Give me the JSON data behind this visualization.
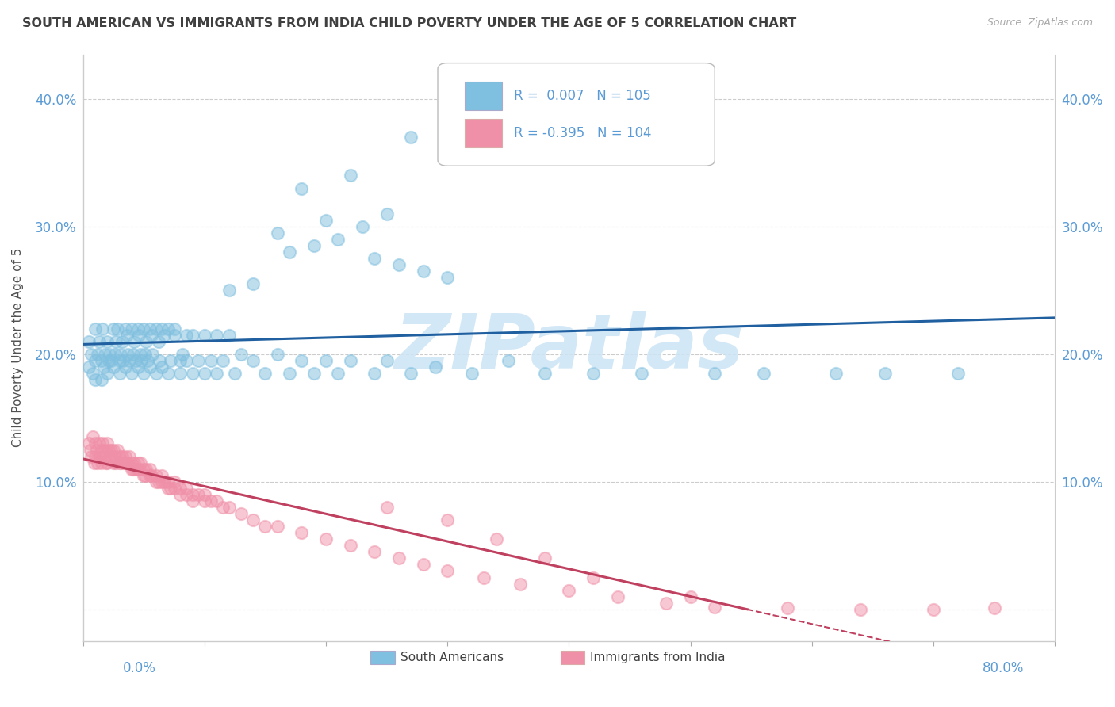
{
  "title": "SOUTH AMERICAN VS IMMIGRANTS FROM INDIA CHILD POVERTY UNDER THE AGE OF 5 CORRELATION CHART",
  "source": "Source: ZipAtlas.com",
  "ylabel": "Child Poverty Under the Age of 5",
  "yticks": [
    0.0,
    0.1,
    0.2,
    0.3,
    0.4
  ],
  "ytick_labels": [
    "",
    "10.0%",
    "20.0%",
    "30.0%",
    "40.0%"
  ],
  "xmin": 0.0,
  "xmax": 0.8,
  "ymin": -0.025,
  "ymax": 0.435,
  "south_american_R": 0.007,
  "south_american_N": 105,
  "india_R": -0.395,
  "india_N": 104,
  "blue_line_color": "#2060a0",
  "pink_line_color": "#c04060",
  "blue_dot_color": "#7fbfdf",
  "pink_dot_color": "#f090a8",
  "background_color": "#ffffff",
  "grid_color": "#cccccc",
  "title_color": "#404040",
  "axis_label_color": "#5b9bd5",
  "watermark_color": "#cce4f5",
  "legend_text_color": "#5b9bd5",
  "legend_pink_text_color": "#5b9bd5",
  "sa_x": [
    0.005,
    0.005,
    0.007,
    0.008,
    0.01,
    0.01,
    0.01,
    0.012,
    0.013,
    0.015,
    0.015,
    0.016,
    0.017,
    0.018,
    0.02,
    0.02,
    0.021,
    0.022,
    0.023,
    0.025,
    0.025,
    0.026,
    0.027,
    0.028,
    0.03,
    0.03,
    0.031,
    0.032,
    0.033,
    0.035,
    0.035,
    0.036,
    0.037,
    0.038,
    0.04,
    0.04,
    0.041,
    0.042,
    0.043,
    0.045,
    0.045,
    0.046,
    0.047,
    0.048,
    0.05,
    0.05,
    0.051,
    0.052,
    0.053,
    0.055,
    0.055,
    0.056,
    0.057,
    0.06,
    0.06,
    0.062,
    0.063,
    0.065,
    0.065,
    0.067,
    0.07,
    0.07,
    0.072,
    0.075,
    0.075,
    0.08,
    0.08,
    0.082,
    0.085,
    0.085,
    0.09,
    0.09,
    0.095,
    0.1,
    0.1,
    0.105,
    0.11,
    0.11,
    0.115,
    0.12,
    0.125,
    0.13,
    0.14,
    0.15,
    0.16,
    0.17,
    0.18,
    0.19,
    0.2,
    0.21,
    0.22,
    0.24,
    0.25,
    0.27,
    0.29,
    0.32,
    0.35,
    0.38,
    0.42,
    0.46,
    0.52,
    0.56,
    0.62,
    0.66,
    0.72
  ],
  "sa_y": [
    0.19,
    0.21,
    0.2,
    0.185,
    0.22,
    0.18,
    0.195,
    0.2,
    0.21,
    0.195,
    0.18,
    0.22,
    0.19,
    0.2,
    0.21,
    0.185,
    0.195,
    0.2,
    0.195,
    0.22,
    0.19,
    0.2,
    0.21,
    0.22,
    0.195,
    0.185,
    0.2,
    0.21,
    0.195,
    0.22,
    0.19,
    0.215,
    0.2,
    0.195,
    0.22,
    0.185,
    0.2,
    0.21,
    0.195,
    0.22,
    0.19,
    0.215,
    0.2,
    0.195,
    0.22,
    0.185,
    0.2,
    0.21,
    0.195,
    0.22,
    0.19,
    0.215,
    0.2,
    0.22,
    0.185,
    0.21,
    0.195,
    0.22,
    0.19,
    0.215,
    0.22,
    0.185,
    0.195,
    0.215,
    0.22,
    0.195,
    0.185,
    0.2,
    0.215,
    0.195,
    0.215,
    0.185,
    0.195,
    0.215,
    0.185,
    0.195,
    0.215,
    0.185,
    0.195,
    0.215,
    0.185,
    0.2,
    0.195,
    0.185,
    0.2,
    0.185,
    0.195,
    0.185,
    0.195,
    0.185,
    0.195,
    0.185,
    0.195,
    0.185,
    0.19,
    0.185,
    0.195,
    0.185,
    0.185,
    0.185,
    0.185,
    0.185,
    0.185,
    0.185,
    0.185
  ],
  "sa_y_outliers": [
    0.37,
    0.34,
    0.33,
    0.31,
    0.305,
    0.3,
    0.295,
    0.29,
    0.285,
    0.28,
    0.275,
    0.27,
    0.265,
    0.26,
    0.255,
    0.25
  ],
  "sa_x_outliers": [
    0.27,
    0.22,
    0.18,
    0.25,
    0.2,
    0.23,
    0.16,
    0.21,
    0.19,
    0.17,
    0.24,
    0.26,
    0.28,
    0.3,
    0.14,
    0.12
  ],
  "in_x": [
    0.005,
    0.006,
    0.007,
    0.008,
    0.009,
    0.01,
    0.01,
    0.011,
    0.012,
    0.013,
    0.014,
    0.015,
    0.015,
    0.016,
    0.017,
    0.018,
    0.019,
    0.02,
    0.02,
    0.021,
    0.022,
    0.023,
    0.025,
    0.025,
    0.026,
    0.027,
    0.028,
    0.03,
    0.03,
    0.031,
    0.032,
    0.033,
    0.035,
    0.035,
    0.036,
    0.037,
    0.038,
    0.04,
    0.04,
    0.041,
    0.042,
    0.043,
    0.045,
    0.045,
    0.046,
    0.047,
    0.05,
    0.05,
    0.051,
    0.052,
    0.055,
    0.055,
    0.056,
    0.06,
    0.06,
    0.062,
    0.065,
    0.065,
    0.067,
    0.07,
    0.07,
    0.072,
    0.075,
    0.075,
    0.08,
    0.08,
    0.085,
    0.085,
    0.09,
    0.09,
    0.095,
    0.1,
    0.1,
    0.105,
    0.11,
    0.115,
    0.12,
    0.13,
    0.14,
    0.15,
    0.16,
    0.18,
    0.2,
    0.22,
    0.24,
    0.26,
    0.28,
    0.3,
    0.33,
    0.36,
    0.4,
    0.44,
    0.48,
    0.52,
    0.58,
    0.64,
    0.7,
    0.75,
    0.34,
    0.25,
    0.3,
    0.38,
    0.42,
    0.5
  ],
  "in_y": [
    0.13,
    0.125,
    0.12,
    0.135,
    0.115,
    0.13,
    0.12,
    0.125,
    0.115,
    0.13,
    0.12,
    0.125,
    0.115,
    0.13,
    0.12,
    0.125,
    0.115,
    0.13,
    0.115,
    0.125,
    0.12,
    0.125,
    0.115,
    0.125,
    0.12,
    0.115,
    0.125,
    0.115,
    0.12,
    0.115,
    0.12,
    0.115,
    0.115,
    0.12,
    0.115,
    0.115,
    0.12,
    0.11,
    0.115,
    0.11,
    0.115,
    0.11,
    0.11,
    0.115,
    0.11,
    0.115,
    0.105,
    0.11,
    0.105,
    0.11,
    0.105,
    0.11,
    0.105,
    0.1,
    0.105,
    0.1,
    0.1,
    0.105,
    0.1,
    0.095,
    0.1,
    0.095,
    0.095,
    0.1,
    0.09,
    0.095,
    0.09,
    0.095,
    0.09,
    0.085,
    0.09,
    0.085,
    0.09,
    0.085,
    0.085,
    0.08,
    0.08,
    0.075,
    0.07,
    0.065,
    0.065,
    0.06,
    0.055,
    0.05,
    0.045,
    0.04,
    0.035,
    0.03,
    0.025,
    0.02,
    0.015,
    0.01,
    0.005,
    0.002,
    0.001,
    0.0,
    0.0,
    0.001,
    0.055,
    0.08,
    0.07,
    0.04,
    0.025,
    0.01
  ]
}
